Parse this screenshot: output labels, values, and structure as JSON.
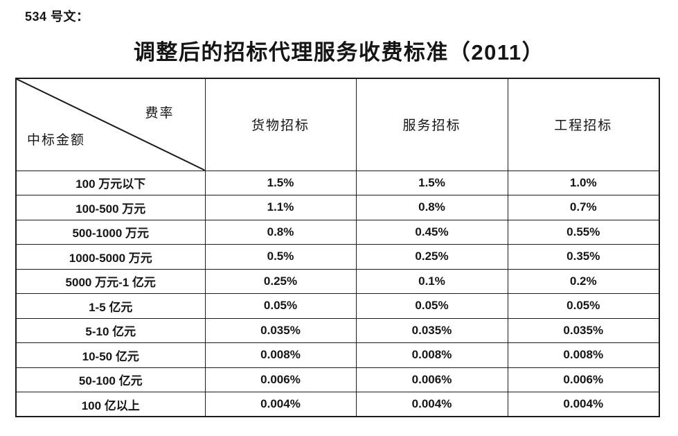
{
  "page": {
    "doc_number": "534 号文：",
    "title": "调整后的招标代理服务收费标准（2011）"
  },
  "colors": {
    "background": "#ffffff",
    "text": "#151515",
    "border": "#1b1b1b"
  },
  "table": {
    "corner": {
      "rate_label": "费率",
      "amount_label": "中标金额"
    },
    "columns": [
      "货物招标",
      "服务招标",
      "工程招标"
    ],
    "rows": [
      {
        "amount": "100 万元以下",
        "values": [
          "1.5%",
          "1.5%",
          "1.0%"
        ]
      },
      {
        "amount": "100-500 万元",
        "values": [
          "1.1%",
          "0.8%",
          "0.7%"
        ]
      },
      {
        "amount": "500-1000 万元",
        "values": [
          "0.8%",
          "0.45%",
          "0.55%"
        ]
      },
      {
        "amount": "1000-5000 万元",
        "values": [
          "0.5%",
          "0.25%",
          "0.35%"
        ]
      },
      {
        "amount": "5000 万元-1 亿元",
        "values": [
          "0.25%",
          "0.1%",
          "0.2%"
        ]
      },
      {
        "amount": "1-5 亿元",
        "values": [
          "0.05%",
          "0.05%",
          "0.05%"
        ]
      },
      {
        "amount": "5-10 亿元",
        "values": [
          "0.035%",
          "0.035%",
          "0.035%"
        ]
      },
      {
        "amount": "10-50 亿元",
        "values": [
          "0.008%",
          "0.008%",
          "0.008%"
        ]
      },
      {
        "amount": "50-100 亿元",
        "values": [
          "0.006%",
          "0.006%",
          "0.006%"
        ]
      },
      {
        "amount": "100 亿以上",
        "values": [
          "0.004%",
          "0.004%",
          "0.004%"
        ]
      }
    ]
  }
}
